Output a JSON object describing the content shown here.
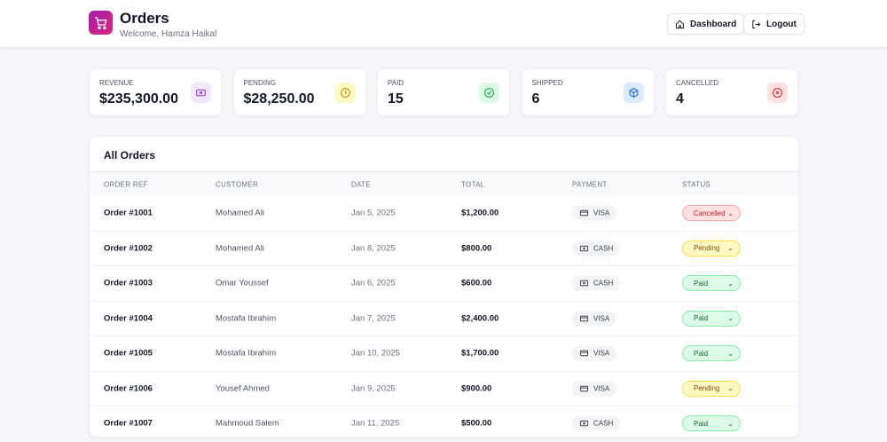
{
  "header": {
    "title": "Orders",
    "subtitle": "Welcome, Hamza Haikal",
    "dashboard_label": "Dashboard",
    "logout_label": "Logout"
  },
  "stats": [
    {
      "label": "REVENUE",
      "value": "$235,300.00",
      "icon": "money-icon",
      "color": "#9333ea",
      "bg": "#f3e8ff"
    },
    {
      "label": "PENDING",
      "value": "$28,250.00",
      "icon": "clock-icon",
      "color": "#ca8a04",
      "bg": "#fef9c3"
    },
    {
      "label": "PAID",
      "value": "15",
      "icon": "check-circle-icon",
      "color": "#16a34a",
      "bg": "#dcfce7"
    },
    {
      "label": "SHIPPED",
      "value": "6",
      "icon": "box-icon",
      "color": "#2563eb",
      "bg": "#dbeafe"
    },
    {
      "label": "CANCELLED",
      "value": "4",
      "icon": "x-circle-icon",
      "color": "#dc2626",
      "bg": "#fee2e2"
    }
  ],
  "orders": {
    "title": "All Orders",
    "columns": [
      "ORDER REF",
      "CUSTOMER",
      "DATE",
      "TOTAL",
      "PAYMENT",
      "STATUS"
    ],
    "rows": [
      {
        "ref": "Order #1001",
        "customer": "Mohamed Ali",
        "date": "Jan 5, 2025",
        "total": "$1,200.00",
        "payment": "VISA",
        "status": "Cancelled"
      },
      {
        "ref": "Order #1002",
        "customer": "Mohamed Ali",
        "date": "Jan 8, 2025",
        "total": "$800.00",
        "payment": "CASH",
        "status": "Pending"
      },
      {
        "ref": "Order #1003",
        "customer": "Omar Youssef",
        "date": "Jan 6, 2025",
        "total": "$600.00",
        "payment": "CASH",
        "status": "Paid"
      },
      {
        "ref": "Order #1004",
        "customer": "Mostafa Ibrahim",
        "date": "Jan 7, 2025",
        "total": "$2,400.00",
        "payment": "VISA",
        "status": "Paid"
      },
      {
        "ref": "Order #1005",
        "customer": "Mostafa Ibrahim",
        "date": "Jan 10, 2025",
        "total": "$1,700.00",
        "payment": "VISA",
        "status": "Paid"
      },
      {
        "ref": "Order #1006",
        "customer": "Yousef Ahmed",
        "date": "Jan 9, 2025",
        "total": "$900.00",
        "payment": "VISA",
        "status": "Pending"
      },
      {
        "ref": "Order #1007",
        "customer": "Mahmoud Salem",
        "date": "Jan 11, 2025",
        "total": "$500.00",
        "payment": "CASH",
        "status": "Paid"
      }
    ]
  },
  "status_colors": {
    "Cancelled": {
      "bg": "#fee2e2",
      "border": "#fca5a5",
      "fg": "#b91c1c"
    },
    "Pending": {
      "bg": "#fef9c3",
      "border": "#fde047",
      "fg": "#854d0e"
    },
    "Paid": {
      "bg": "#dcfce7",
      "border": "#86efac",
      "fg": "#166534"
    }
  }
}
